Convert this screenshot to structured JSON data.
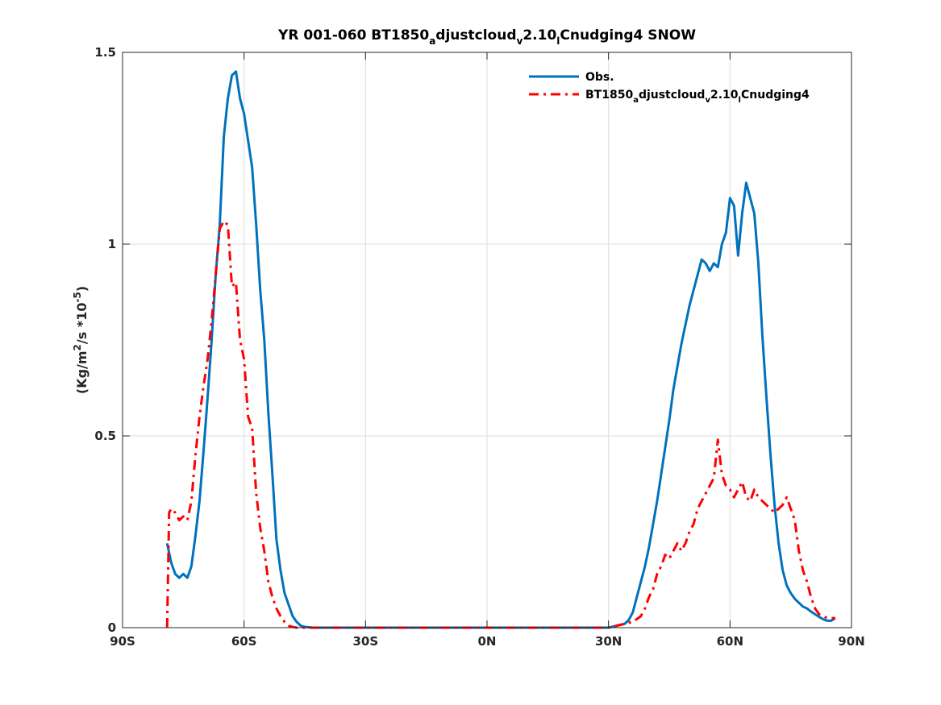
{
  "chart_data": {
    "type": "line",
    "title": {
      "parts": [
        {
          "t": "YR 001-060 BT1850",
          "s": ""
        },
        {
          "t": "a",
          "s": "sub"
        },
        {
          "t": "djustcloud",
          "s": ""
        },
        {
          "t": "v",
          "s": "sub"
        },
        {
          "t": "2.10",
          "s": ""
        },
        {
          "t": "l",
          "s": "sub"
        },
        {
          "t": "Cnudging4 SNOW",
          "s": ""
        }
      ]
    },
    "ylabel": {
      "parts": [
        {
          "t": "(Kg/m",
          "s": ""
        },
        {
          "t": "2",
          "s": "sup"
        },
        {
          "t": "/s *10",
          "s": ""
        },
        {
          "t": "-5",
          "s": "sup"
        },
        {
          "t": ")",
          "s": ""
        }
      ]
    },
    "xlim": [
      -90,
      90
    ],
    "ylim": [
      0,
      1.5
    ],
    "grid": true,
    "legend_position": "top-right",
    "x_ticks": [
      {
        "value": -90,
        "label": "90S"
      },
      {
        "value": -60,
        "label": "60S"
      },
      {
        "value": -30,
        "label": "30S"
      },
      {
        "value": 0,
        "label": "0N"
      },
      {
        "value": 30,
        "label": "30N"
      },
      {
        "value": 60,
        "label": "60N"
      },
      {
        "value": 90,
        "label": "90N"
      }
    ],
    "y_ticks": [
      {
        "value": 0,
        "label": "0"
      },
      {
        "value": 0.5,
        "label": "0.5"
      },
      {
        "value": 1,
        "label": "1"
      },
      {
        "value": 1.5,
        "label": "1.5"
      }
    ],
    "series": [
      {
        "name": {
          "parts": [
            {
              "t": "Obs.",
              "s": ""
            }
          ]
        },
        "color": "#0072BD",
        "dash": "solid",
        "x": [
          -79,
          -78,
          -77,
          -76,
          -75,
          -74,
          -73,
          -72,
          -71,
          -70,
          -69,
          -68,
          -67,
          -66,
          -65,
          -64,
          -63,
          -62,
          -61,
          -60,
          -59,
          -58,
          -57,
          -56,
          -55,
          -54,
          -53,
          -52,
          -51,
          -50,
          -49,
          -48,
          -47,
          -46,
          -45,
          -44,
          -43,
          -42,
          -40,
          -35,
          -30,
          -20,
          -10,
          0,
          10,
          20,
          30,
          32,
          34,
          35,
          36,
          37,
          38,
          39,
          40,
          41,
          42,
          43,
          44,
          45,
          46,
          47,
          48,
          49,
          50,
          51,
          52,
          53,
          54,
          55,
          56,
          57,
          58,
          59,
          60,
          61,
          62,
          63,
          64,
          65,
          66,
          67,
          68,
          69,
          70,
          71,
          72,
          73,
          74,
          75,
          76,
          77,
          78,
          79,
          80,
          81,
          82,
          83,
          84,
          85,
          86
        ],
        "y": [
          0.22,
          0.17,
          0.14,
          0.13,
          0.14,
          0.13,
          0.16,
          0.24,
          0.33,
          0.46,
          0.6,
          0.75,
          0.92,
          1.05,
          1.28,
          1.38,
          1.44,
          1.45,
          1.38,
          1.34,
          1.27,
          1.2,
          1.05,
          0.88,
          0.75,
          0.56,
          0.4,
          0.23,
          0.15,
          0.09,
          0.06,
          0.03,
          0.015,
          0.005,
          0.002,
          0.001,
          0.0,
          0.0,
          0.0,
          0.0,
          0.0,
          0.0,
          0.0,
          0.0,
          0.0,
          0.0,
          0.0,
          0.005,
          0.01,
          0.02,
          0.04,
          0.08,
          0.12,
          0.16,
          0.21,
          0.27,
          0.33,
          0.4,
          0.47,
          0.54,
          0.62,
          0.68,
          0.74,
          0.79,
          0.84,
          0.88,
          0.92,
          0.96,
          0.95,
          0.93,
          0.95,
          0.94,
          1.0,
          1.03,
          1.12,
          1.1,
          0.97,
          1.08,
          1.16,
          1.12,
          1.08,
          0.95,
          0.76,
          0.6,
          0.45,
          0.32,
          0.22,
          0.15,
          0.11,
          0.09,
          0.075,
          0.065,
          0.055,
          0.05,
          0.042,
          0.035,
          0.028,
          0.022,
          0.018,
          0.018,
          0.025
        ]
      },
      {
        "name": {
          "parts": [
            {
              "t": "BT1850",
              "s": ""
            },
            {
              "t": "a",
              "s": "sub"
            },
            {
              "t": "djustcloud",
              "s": ""
            },
            {
              "t": "v",
              "s": "sub"
            },
            {
              "t": "2.10",
              "s": ""
            },
            {
              "t": "l",
              "s": "sub"
            },
            {
              "t": "Cnudging4",
              "s": ""
            }
          ]
        },
        "color": "#FF0000",
        "dash": "dashdot",
        "x": [
          -79,
          -78.5,
          -78,
          -77,
          -76,
          -75,
          -74,
          -73,
          -72,
          -71,
          -70,
          -69,
          -68,
          -67,
          -66,
          -65,
          -64,
          -63,
          -62,
          -61,
          -60,
          -59,
          -58,
          -57,
          -56,
          -55,
          -54,
          -53,
          -52,
          -51,
          -50,
          -49,
          -48,
          -47,
          -46,
          -45,
          -44,
          -43,
          -42,
          -40,
          -30,
          -20,
          -10,
          0,
          10,
          20,
          30,
          32,
          34,
          36,
          38,
          39,
          40,
          41,
          42,
          43,
          44,
          45,
          46,
          47,
          48,
          49,
          50,
          51,
          52,
          53,
          54,
          55,
          56,
          57,
          58,
          59,
          60,
          61,
          62,
          63,
          64,
          65,
          66,
          67,
          68,
          69,
          70,
          71,
          72,
          73,
          74,
          75,
          76,
          77,
          78,
          79,
          80,
          81,
          82,
          83,
          84,
          85,
          86
        ],
        "y": [
          0.0,
          0.3,
          0.31,
          0.3,
          0.28,
          0.29,
          0.28,
          0.33,
          0.45,
          0.55,
          0.63,
          0.7,
          0.8,
          0.92,
          1.04,
          1.06,
          1.05,
          0.89,
          0.9,
          0.75,
          0.7,
          0.55,
          0.52,
          0.35,
          0.26,
          0.2,
          0.12,
          0.08,
          0.05,
          0.03,
          0.015,
          0.005,
          0.002,
          0.0,
          0.0,
          0.0,
          0.0,
          0.0,
          0.0,
          0.0,
          0.0,
          0.0,
          0.0,
          0.0,
          0.0,
          0.0,
          0.0,
          0.005,
          0.01,
          0.015,
          0.03,
          0.05,
          0.08,
          0.1,
          0.14,
          0.16,
          0.19,
          0.18,
          0.2,
          0.22,
          0.2,
          0.22,
          0.25,
          0.27,
          0.31,
          0.33,
          0.35,
          0.37,
          0.39,
          0.49,
          0.4,
          0.37,
          0.36,
          0.34,
          0.36,
          0.38,
          0.34,
          0.33,
          0.36,
          0.34,
          0.33,
          0.32,
          0.31,
          0.3,
          0.31,
          0.32,
          0.34,
          0.31,
          0.28,
          0.2,
          0.15,
          0.12,
          0.08,
          0.05,
          0.035,
          0.03,
          0.025,
          0.025,
          0.025
        ]
      }
    ]
  }
}
